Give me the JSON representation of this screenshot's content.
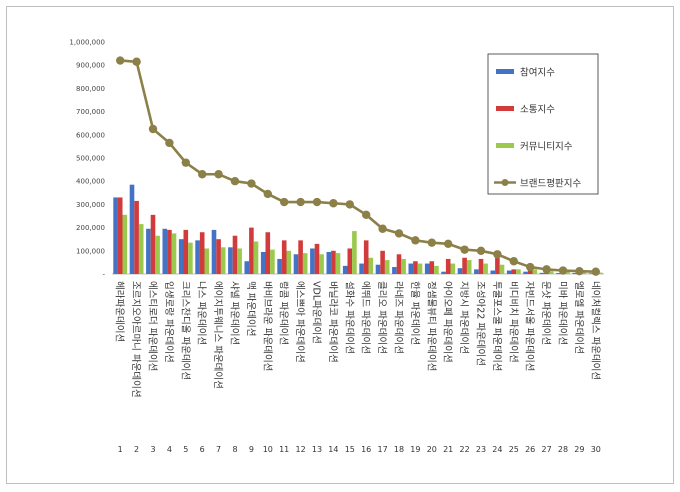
{
  "chart_data": {
    "type": "bar",
    "title": "",
    "xlabel": "",
    "ylabel": "",
    "ylim": [
      0,
      1000000
    ],
    "y_ticks": [
      "-",
      "100,000",
      "200,000",
      "300,000",
      "400,000",
      "500,000",
      "600,000",
      "700,000",
      "800,000",
      "900,000",
      "1,000,000"
    ],
    "grid": true,
    "legend_position": "top-right",
    "ranks": [
      "1",
      "2",
      "3",
      "4",
      "5",
      "6",
      "7",
      "8",
      "9",
      "10",
      "11",
      "12",
      "13",
      "14",
      "15",
      "16",
      "17",
      "18",
      "19",
      "20",
      "21",
      "22",
      "23",
      "24",
      "25",
      "26",
      "27",
      "28",
      "29",
      "30"
    ],
    "categories": [
      "헤라파운데이션",
      "조르지오아르마니 파운데이션",
      "에스티로더 파운데이션",
      "입생로랑 파운데이션",
      "크리스찬디올 파운데이션",
      "나스 파운데이션",
      "에이지투웨니스 파운데이션",
      "샤넬 파운데이션",
      "맥 파운데이션",
      "바비브라운 파운데이션",
      "랑콤 파운데이션",
      "에스쁘아 파운데이션",
      "VDL파운데이션",
      "바닐라코 파운데이션",
      "설화수 파운데이션",
      "에뛰드 파운데이션",
      "클리오 파운데이션",
      "라네즈 파운데이션",
      "한율 파운데이션",
      "정샘물뷰티 파운데이션",
      "아이오페 파운데이션",
      "지방시 파운데이션",
      "조성아22 파운데이션",
      "투쿨포스쿨 파운데이션",
      "비디비치 파운데이션",
      "자빈드서울 파운데이션",
      "문샷 파운데이션",
      "미바 파운데이션",
      "엘로엘 파운데이션",
      "네이처컬렉스 파운데이션"
    ],
    "series": [
      {
        "name": "참여지수",
        "type": "bar",
        "color": "#4472c4",
        "values": [
          330000,
          385000,
          195000,
          195000,
          150000,
          145000,
          190000,
          115000,
          55000,
          95000,
          65000,
          85000,
          110000,
          95000,
          35000,
          45000,
          40000,
          30000,
          45000,
          45000,
          10000,
          25000,
          20000,
          15000,
          15000,
          10000,
          5000,
          4000,
          4000,
          3000
        ]
      },
      {
        "name": "소통지수",
        "type": "bar",
        "color": "#d13b3b",
        "values": [
          330000,
          315000,
          255000,
          190000,
          190000,
          180000,
          150000,
          165000,
          200000,
          180000,
          145000,
          145000,
          130000,
          100000,
          110000,
          145000,
          100000,
          85000,
          55000,
          55000,
          65000,
          70000,
          65000,
          70000,
          20000,
          25000,
          10000,
          10000,
          10000,
          6000
        ]
      },
      {
        "name": "커뮤니티지수",
        "type": "bar",
        "color": "#9bc94e",
        "values": [
          255000,
          215000,
          165000,
          175000,
          135000,
          110000,
          115000,
          110000,
          140000,
          105000,
          100000,
          90000,
          85000,
          90000,
          185000,
          70000,
          60000,
          65000,
          45000,
          35000,
          45000,
          60000,
          45000,
          40000,
          20000,
          20000,
          12000,
          10000,
          8000,
          6000
        ]
      },
      {
        "name": "브랜드평판지수",
        "type": "line",
        "color": "#8b8048",
        "values": [
          920000,
          915000,
          625000,
          565000,
          480000,
          430000,
          430000,
          400000,
          390000,
          345000,
          310000,
          310000,
          310000,
          305000,
          300000,
          255000,
          195000,
          175000,
          145000,
          135000,
          130000,
          105000,
          100000,
          85000,
          55000,
          30000,
          20000,
          15000,
          12000,
          10000
        ]
      }
    ]
  }
}
